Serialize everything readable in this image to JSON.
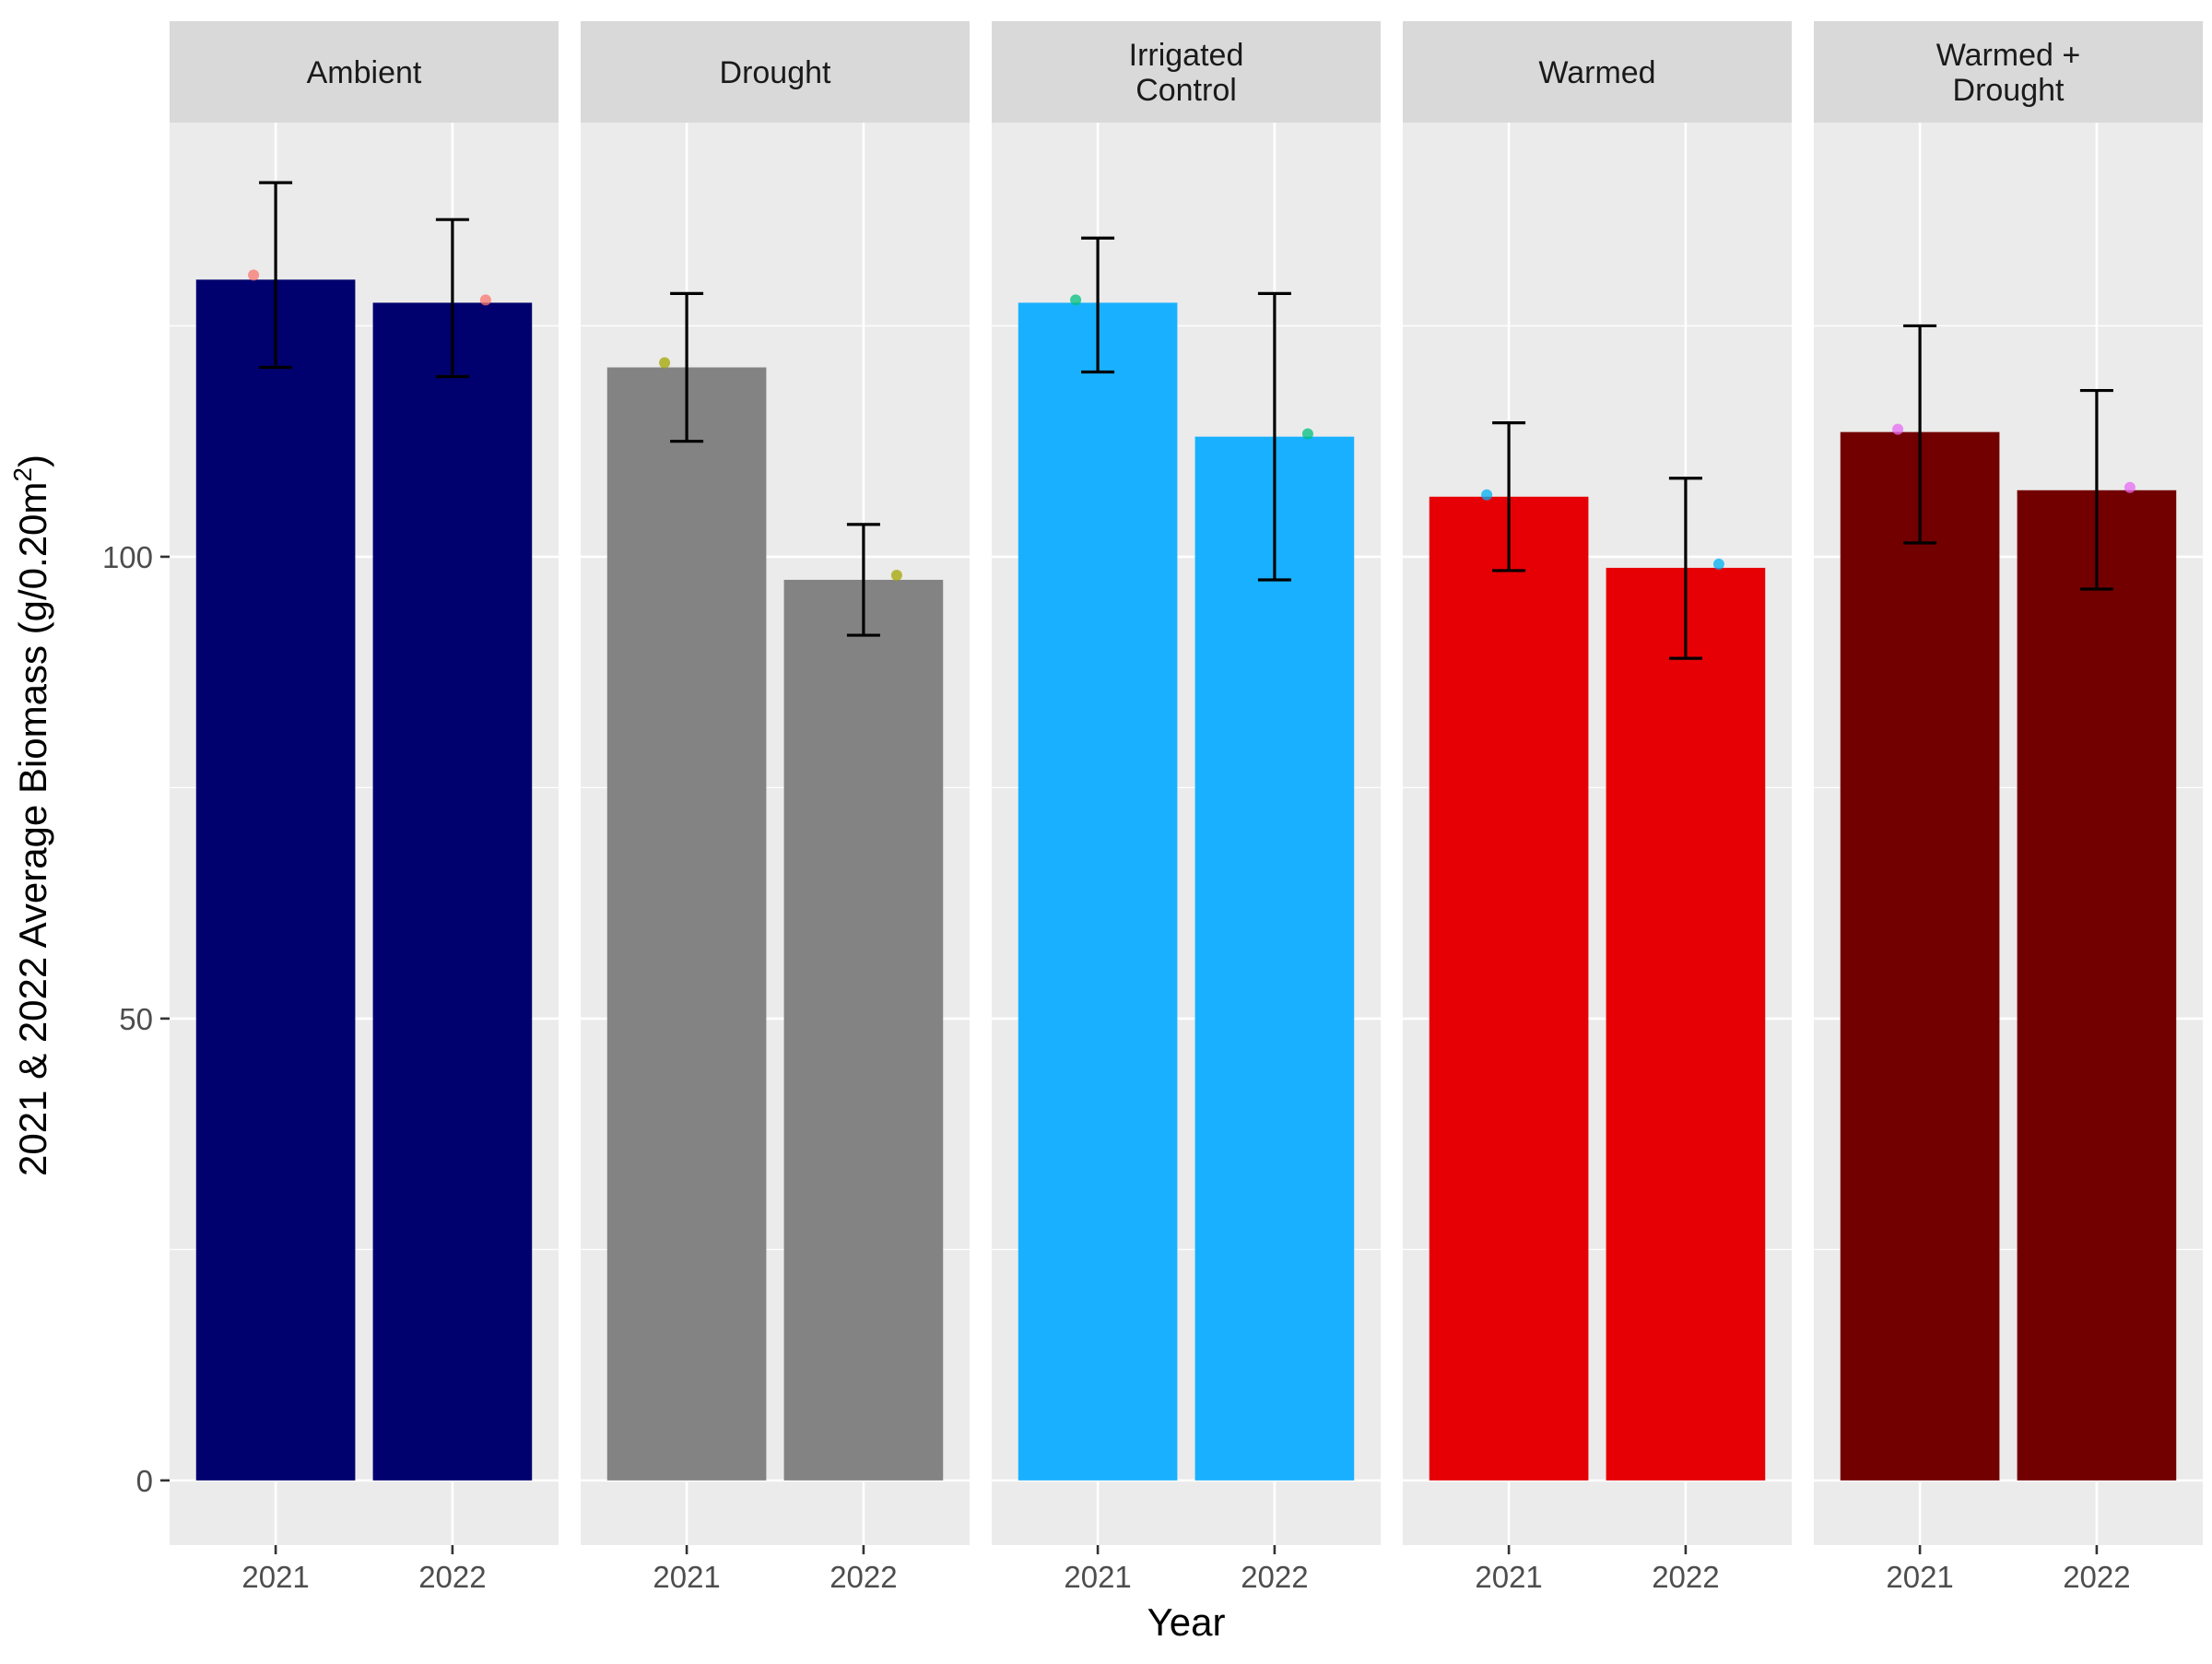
{
  "chart_data": {
    "type": "bar",
    "xlabel": "Year",
    "ylabel": "2021 & 2022 Average Biomass (g/0.20m",
    "ylabel_superscript": "2",
    "ylabel_suffix": ")",
    "ylim": [
      -7,
      147
    ],
    "yticks": [
      0,
      50,
      100
    ],
    "grid": true,
    "legend": "none",
    "categories": [
      "2021",
      "2022"
    ],
    "facets": [
      {
        "name": "Ambient",
        "label_lines": [
          "Ambient"
        ],
        "color": "#00006e",
        "point_color": "#f8766d",
        "values": [
          130.0,
          127.5
        ],
        "error_low": [
          120.5,
          119.5
        ],
        "error_high": [
          140.5,
          136.5
        ],
        "points": [
          130.5,
          127.8
        ]
      },
      {
        "name": "Drought",
        "label_lines": [
          "Drought"
        ],
        "color": "#838383",
        "point_color": "#a3a500",
        "values": [
          120.5,
          97.5
        ],
        "error_low": [
          112.5,
          91.5
        ],
        "error_high": [
          128.5,
          103.5
        ],
        "points": [
          121.0,
          98.0
        ]
      },
      {
        "name": "Irrigated Control",
        "label_lines": [
          "Irrigated",
          "Control"
        ],
        "color": "#19b1ff",
        "point_color": "#00bf7d",
        "values": [
          127.5,
          113.0
        ],
        "error_low": [
          120.0,
          97.5
        ],
        "error_high": [
          134.5,
          128.5
        ],
        "points": [
          127.8,
          113.3
        ]
      },
      {
        "name": "Warmed",
        "label_lines": [
          "Warmed"
        ],
        "color": "#e60005",
        "point_color": "#00b0f6",
        "values": [
          106.5,
          98.8
        ],
        "error_low": [
          98.5,
          89.0
        ],
        "error_high": [
          114.5,
          108.5
        ],
        "points": [
          106.7,
          99.2
        ]
      },
      {
        "name": "Warmed + Drought",
        "label_lines": [
          "Warmed +",
          "Drought"
        ],
        "color": "#730000",
        "point_color": "#e76bf3",
        "values": [
          113.5,
          107.2
        ],
        "error_low": [
          101.5,
          96.5
        ],
        "error_high": [
          125.0,
          118.0
        ],
        "points": [
          113.8,
          107.5
        ]
      }
    ]
  }
}
